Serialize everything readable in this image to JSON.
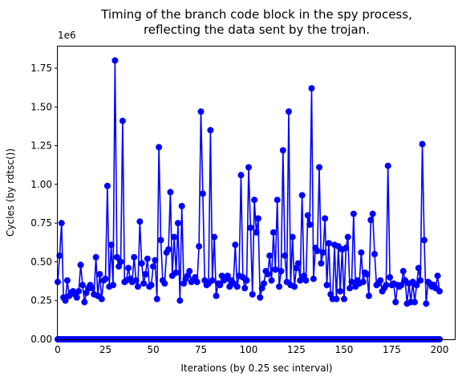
{
  "chart_data": {
    "type": "line",
    "title": "Timing of the branch code block in the spy process,",
    "subtitle": "reflecting the data sent by the trojan.",
    "xlabel": "Iterations (by 0.25 sec interval)",
    "ylabel": "Cycles (by rdtsc())",
    "y_offset_label": "1e6",
    "xlim": [
      0,
      208
    ],
    "ylim": [
      0,
      1890000
    ],
    "x_ticks": [
      0,
      25,
      50,
      75,
      100,
      125,
      150,
      175,
      200
    ],
    "x_tick_labels": [
      "0",
      "25",
      "50",
      "75",
      "100",
      "125",
      "150",
      "175",
      "200"
    ],
    "y_ticks": [
      0,
      250000,
      500000,
      750000,
      1000000,
      1250000,
      1500000,
      1750000
    ],
    "y_tick_labels": [
      "0.00",
      "0.25",
      "0.50",
      "0.75",
      "1.00",
      "1.25",
      "1.50",
      "1.75"
    ],
    "grid": false,
    "legend": "none",
    "colors": {
      "series": "#0000ff"
    },
    "series": [
      {
        "marker": "circle",
        "values": [
          370000,
          540000,
          750000,
          270000,
          250000,
          380000,
          280000,
          300000,
          310000,
          290000,
          270000,
          310000,
          480000,
          350000,
          240000,
          300000,
          330000,
          350000,
          330000,
          290000,
          530000,
          280000,
          420000,
          260000,
          380000,
          390000,
          990000,
          340000,
          610000,
          350000,
          1800000,
          530000,
          470000,
          500000,
          1410000,
          370000,
          380000,
          460000,
          390000,
          370000,
          530000,
          380000,
          340000,
          760000,
          490000,
          360000,
          420000,
          520000,
          340000,
          350000,
          470000,
          510000,
          260000,
          1240000,
          640000,
          380000,
          360000,
          560000,
          580000,
          950000,
          410000,
          660000,
          430000,
          750000,
          250000,
          860000,
          360000,
          390000,
          410000,
          440000,
          370000,
          380000,
          400000,
          370000,
          600000,
          1470000,
          940000,
          380000,
          350000,
          360000,
          1350000,
          380000,
          660000,
          280000,
          360000,
          350000,
          410000,
          380000,
          390000,
          410000,
          340000,
          380000,
          360000,
          610000,
          340000,
          410000,
          1060000,
          400000,
          330000,
          380000,
          1110000,
          720000,
          290000,
          900000,
          690000,
          780000,
          270000,
          330000,
          360000,
          440000,
          420000,
          540000,
          380000,
          690000,
          450000,
          900000,
          340000,
          440000,
          1220000,
          540000,
          370000,
          1470000,
          350000,
          660000,
          340000,
          460000,
          490000,
          380000,
          930000,
          410000,
          380000,
          800000,
          740000,
          1620000,
          390000,
          590000,
          570000,
          1110000,
          490000,
          560000,
          780000,
          350000,
          620000,
          290000,
          260000,
          610000,
          260000,
          600000,
          310000,
          580000,
          260000,
          590000,
          660000,
          330000,
          370000,
          810000,
          340000,
          380000,
          360000,
          560000,
          370000,
          430000,
          420000,
          280000,
          770000,
          810000,
          550000,
          350000,
          360000,
          380000,
          310000,
          330000,
          350000,
          1120000,
          400000,
          350000,
          360000,
          240000,
          350000,
          340000,
          350000,
          440000,
          380000,
          230000,
          360000,
          240000,
          370000,
          240000,
          350000,
          460000,
          380000,
          1260000,
          640000,
          230000,
          370000,
          360000,
          340000,
          350000,
          330000,
          410000,
          310000
        ]
      },
      {
        "marker": "circle",
        "values": [
          0,
          0,
          0,
          0,
          0,
          0,
          0,
          0,
          0,
          0,
          0,
          0,
          0,
          0,
          0,
          0,
          0,
          0,
          0,
          0,
          0,
          0,
          0,
          0,
          0,
          0,
          0,
          0,
          0,
          0,
          0,
          0,
          0,
          0,
          0,
          0,
          0,
          0,
          0,
          0,
          0,
          0,
          0,
          0,
          0,
          0,
          0,
          0,
          0,
          0,
          0,
          0,
          0,
          0,
          0,
          0,
          0,
          0,
          0,
          0,
          0,
          0,
          0,
          0,
          0,
          0,
          0,
          0,
          0,
          0,
          0,
          0,
          0,
          0,
          0,
          0,
          0,
          0,
          0,
          0,
          0,
          0,
          0,
          0,
          0,
          0,
          0,
          0,
          0,
          0,
          0,
          0,
          0,
          0,
          0,
          0,
          0,
          0,
          0,
          0,
          0,
          0,
          0,
          0,
          0,
          0,
          0,
          0,
          0,
          0,
          0,
          0,
          0,
          0,
          0,
          0,
          0,
          0,
          0,
          0,
          0,
          0,
          0,
          0,
          0,
          0,
          0,
          0,
          0,
          0,
          0,
          0,
          0,
          0,
          0,
          0,
          0,
          0,
          0,
          0,
          0,
          0,
          0,
          0,
          0,
          0,
          0,
          0,
          0,
          0,
          0,
          0,
          0,
          0,
          0,
          0,
          0,
          0,
          0,
          0,
          0,
          0,
          0,
          0,
          0,
          0,
          0,
          0,
          0,
          0,
          0,
          0,
          0,
          0,
          0,
          0,
          0,
          0,
          0,
          0,
          0,
          0,
          0,
          0,
          0,
          0,
          0,
          0,
          0,
          0,
          0,
          0,
          0,
          0,
          0,
          0,
          0,
          0,
          0,
          0,
          0
        ]
      }
    ]
  }
}
